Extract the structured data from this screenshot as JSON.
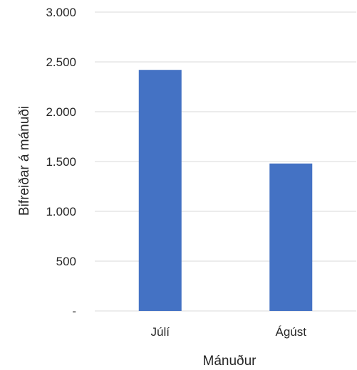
{
  "chart_data": {
    "type": "bar",
    "categories": [
      "Júlí",
      "Ágúst"
    ],
    "series": [
      {
        "values": [
          2420,
          1480
        ]
      }
    ],
    "xlabel": "Mánuður",
    "ylabel": "Bifreiðar á mánuði",
    "ylim": [
      0,
      3000
    ],
    "yticks": [
      0,
      500,
      1000,
      1500,
      2000,
      2500,
      3000
    ],
    "ytick_labels": [
      "-",
      "500",
      "1.000",
      "1.500",
      "2.000",
      "2.500",
      "3.000"
    ],
    "grid": true,
    "legend": "none",
    "bar_color": "#4472c4"
  }
}
